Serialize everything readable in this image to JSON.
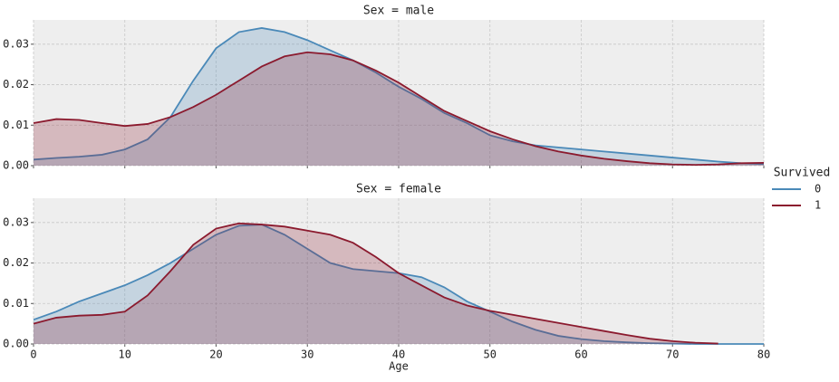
{
  "chart_data": [
    {
      "type": "area",
      "title": "Sex = male",
      "x_label": "Age",
      "legend_title": "Survived",
      "legend_position": "right",
      "x": [
        0,
        2.5,
        5,
        7.5,
        10,
        12.5,
        15,
        17.5,
        20,
        22.5,
        25,
        27.5,
        30,
        32.5,
        35,
        37.5,
        40,
        42.5,
        45,
        47.5,
        50,
        52.5,
        55,
        57.5,
        60,
        62.5,
        65,
        67.5,
        70,
        72.5,
        75,
        77.5,
        80
      ],
      "xlim": [
        0,
        80
      ],
      "ylim": [
        0,
        0.036
      ],
      "yticks": [
        {
          "value": 0,
          "label": "0.00"
        },
        {
          "value": 0.01,
          "label": "0.01"
        },
        {
          "value": 0.02,
          "label": "0.02"
        },
        {
          "value": 0.03,
          "label": "0.03"
        }
      ],
      "grid": true,
      "series": [
        {
          "name": "0",
          "color": "#4a89b8",
          "values": [
            0.0015,
            0.0019,
            0.0022,
            0.0027,
            0.004,
            0.0065,
            0.012,
            0.021,
            0.029,
            0.033,
            0.034,
            0.033,
            0.031,
            0.0285,
            0.026,
            0.023,
            0.0195,
            0.0165,
            0.013,
            0.0105,
            0.0075,
            0.006,
            0.005,
            0.0045,
            0.004,
            0.0035,
            0.003,
            0.0025,
            0.002,
            0.0015,
            0.001,
            0.0006,
            0.0004
          ]
        },
        {
          "name": "1",
          "color": "#8b1a2e",
          "values": [
            0.0105,
            0.0115,
            0.0113,
            0.0105,
            0.0098,
            0.0103,
            0.012,
            0.0145,
            0.0175,
            0.021,
            0.0245,
            0.027,
            0.028,
            0.0275,
            0.026,
            0.0235,
            0.0205,
            0.017,
            0.0135,
            0.011,
            0.0085,
            0.0065,
            0.0048,
            0.0035,
            0.0025,
            0.0017,
            0.0011,
            0.0006,
            0.0003,
            0.0002,
            0.0003,
            0.0006,
            0.0007
          ]
        }
      ]
    },
    {
      "type": "area",
      "title": "Sex = female",
      "x": [
        0,
        2.5,
        5,
        7.5,
        10,
        12.5,
        15,
        17.5,
        20,
        22.5,
        25,
        27.5,
        30,
        32.5,
        35,
        37.5,
        40,
        42.5,
        45,
        47.5,
        50,
        52.5,
        55,
        57.5,
        60,
        62.5,
        65,
        67.5,
        70,
        72.5,
        75,
        77.5,
        80
      ],
      "xlim": [
        0,
        80
      ],
      "xticks": [
        0,
        10,
        20,
        30,
        40,
        50,
        60,
        70,
        80
      ],
      "ylim": [
        0,
        0.036
      ],
      "yticks": [
        {
          "value": 0,
          "label": "0.00"
        },
        {
          "value": 0.01,
          "label": "0.01"
        },
        {
          "value": 0.02,
          "label": "0.02"
        },
        {
          "value": 0.03,
          "label": "0.03"
        }
      ],
      "grid": true,
      "series": [
        {
          "color": "#4a89b8",
          "values": [
            0.006,
            0.008,
            0.0105,
            0.0125,
            0.0145,
            0.017,
            0.02,
            0.0235,
            0.027,
            0.0292,
            0.0295,
            0.027,
            0.0235,
            0.02,
            0.0185,
            0.018,
            0.0175,
            0.0165,
            0.014,
            0.0105,
            0.008,
            0.0055,
            0.0035,
            0.002,
            0.0012,
            0.0007,
            0.0004,
            0.0002,
            0.0001,
            0,
            0,
            0,
            0
          ]
        },
        {
          "color": "#8b1a2e",
          "values": [
            0.005,
            0.0065,
            0.007,
            0.0072,
            0.008,
            0.012,
            0.018,
            0.0245,
            0.0285,
            0.0298,
            0.0295,
            0.029,
            0.028,
            0.027,
            0.025,
            0.0215,
            0.0175,
            0.0145,
            0.0115,
            0.0095,
            0.0082,
            0.0072,
            0.0062,
            0.0052,
            0.0042,
            0.0032,
            0.0022,
            0.0013,
            0.0007,
            0.0003,
            0.0001,
            null,
            null
          ]
        }
      ]
    }
  ]
}
